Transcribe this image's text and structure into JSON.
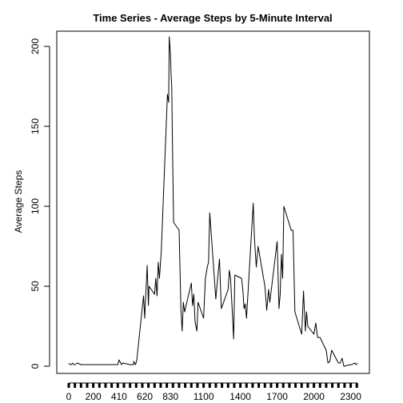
{
  "chart_data": {
    "type": "line",
    "title": "Time Series - Average Steps by 5-Minute Interval",
    "xlabel": "",
    "ylabel": "Average Steps",
    "xlim": [
      0,
      2355
    ],
    "ylim": [
      0,
      210
    ],
    "y_ticks": [
      0,
      50,
      100,
      150,
      200
    ],
    "x_tick_labels": [
      "0",
      "200",
      "410",
      "620",
      "830",
      "1100",
      "1400",
      "1700",
      "2000",
      "2300"
    ],
    "x_tick_positions": [
      0,
      200,
      410,
      620,
      830,
      1100,
      1400,
      1700,
      2000,
      2300
    ],
    "grid": false,
    "legend": "none",
    "line_color": "#000000",
    "series": [
      {
        "x": [
          0,
          10,
          20,
          30,
          40,
          50,
          70,
          100,
          130,
          150,
          200,
          230,
          300,
          330,
          400,
          410,
          430,
          440,
          500,
          530,
          530,
          545,
          555,
          610,
          620,
          625,
          640,
          650,
          655,
          700,
          710,
          720,
          730,
          740,
          755,
          805,
          815,
          820,
          830,
          835,
          840,
          845,
          855,
          900,
          915,
          925,
          935,
          945,
          1000,
          1010,
          1020,
          1030,
          1045,
          1055,
          1100,
          1115,
          1130,
          1140,
          1150,
          1200,
          1215,
          1230,
          1245,
          1300,
          1310,
          1320,
          1330,
          1345,
          1355,
          1410,
          1420,
          1430,
          1440,
          1450,
          1505,
          1515,
          1530,
          1545,
          1600,
          1615,
          1630,
          1640,
          1700,
          1715,
          1725,
          1735,
          1745,
          1755,
          1815,
          1830,
          1845,
          1900,
          1915,
          1930,
          1940,
          1950,
          2000,
          2015,
          2030,
          2050,
          2100,
          2115,
          2130,
          2145,
          2200,
          2215,
          2230,
          2245,
          2300,
          2310,
          2330,
          2345,
          2355
        ],
        "values": [
          2,
          1,
          1,
          2,
          1,
          1,
          2,
          1,
          1,
          1,
          1,
          1,
          1,
          1,
          1,
          4,
          1,
          2,
          1,
          1,
          3,
          1,
          4,
          44,
          30,
          40,
          63,
          38,
          50,
          45,
          55,
          44,
          65,
          55,
          72,
          170,
          165,
          206,
          195,
          182,
          175,
          145,
          90,
          85,
          35,
          22,
          40,
          34,
          52,
          38,
          45,
          28,
          22,
          40,
          30,
          55,
          62,
          65,
          96,
          42,
          55,
          67,
          36,
          48,
          60,
          55,
          40,
          17,
          57,
          55,
          48,
          36,
          39,
          30,
          102,
          80,
          62,
          75,
          50,
          35,
          48,
          40,
          78,
          36,
          45,
          70,
          55,
          100,
          85,
          85,
          34,
          20,
          47,
          22,
          34,
          25,
          20,
          27,
          18,
          18,
          10,
          2,
          3,
          10,
          2,
          2,
          5,
          0,
          1,
          1,
          2,
          1,
          2
        ]
      }
    ]
  }
}
